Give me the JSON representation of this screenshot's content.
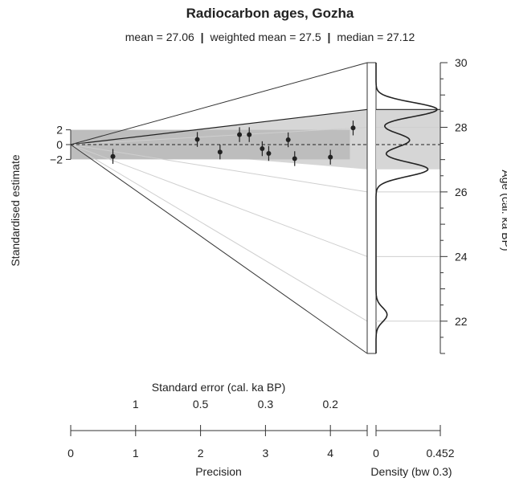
{
  "chart_data": {
    "type": "radial",
    "title": "Radiocarbon ages, Gozha",
    "subtitle_parts": [
      "mean = 27.06",
      "weighted mean = 27.5",
      "median = 27.12"
    ],
    "subtitle_separator": "|",
    "z_axis": {
      "label": "Standardised estimate",
      "ticks": [
        2,
        0,
        -2
      ],
      "tick_labels": [
        "2",
        "0",
        "−2"
      ]
    },
    "age_axis": {
      "label": "Age (cal. ka BP)",
      "range": [
        21,
        30
      ],
      "major_ticks": [
        22,
        24,
        26,
        28,
        30
      ],
      "tick_labels": [
        "22",
        "24",
        "26",
        "28",
        "30"
      ]
    },
    "precision_axis": {
      "label": "Precision",
      "ticks": [
        0,
        1,
        2,
        3,
        4
      ],
      "tick_labels": [
        "0",
        "1",
        "2",
        "3",
        "4"
      ]
    },
    "standard_error_axis": {
      "label": "Standard error (cal. ka BP)",
      "tick_positions_precision": [
        1,
        2,
        3,
        4
      ],
      "tick_labels": [
        "1",
        "0.5",
        "0.3",
        "0.2"
      ]
    },
    "density_axis": {
      "label": "Density (bw 0.3)",
      "ticks": [
        0,
        0.452
      ],
      "tick_labels": [
        "0",
        "0.452"
      ]
    },
    "reference_age": 27.5,
    "ray_ages": [
      22,
      24,
      26,
      28
    ],
    "points": [
      {
        "precision": 0.65,
        "z": -1.6
      },
      {
        "precision": 1.95,
        "z": 0.7
      },
      {
        "precision": 2.3,
        "z": -1.0
      },
      {
        "precision": 2.6,
        "z": 1.35
      },
      {
        "precision": 2.75,
        "z": 1.35
      },
      {
        "precision": 2.95,
        "z": -0.55
      },
      {
        "precision": 3.05,
        "z": -1.2
      },
      {
        "precision": 3.35,
        "z": 0.65
      },
      {
        "precision": 3.45,
        "z": -1.9
      },
      {
        "precision": 4.0,
        "z": -1.7
      },
      {
        "precision": 4.35,
        "z": 2.25
      }
    ],
    "shaded_age_band_light": [
      26.7,
      28.55
    ],
    "shaded_age_band_dark": [
      26.73,
      28.55
    ],
    "density_peaks": [
      {
        "age": 22.2,
        "height": 0.18
      },
      {
        "age": 26.7,
        "height": 0.85
      },
      {
        "age": 27.6,
        "height": 0.55
      },
      {
        "age": 28.55,
        "height": 1.0
      }
    ]
  }
}
